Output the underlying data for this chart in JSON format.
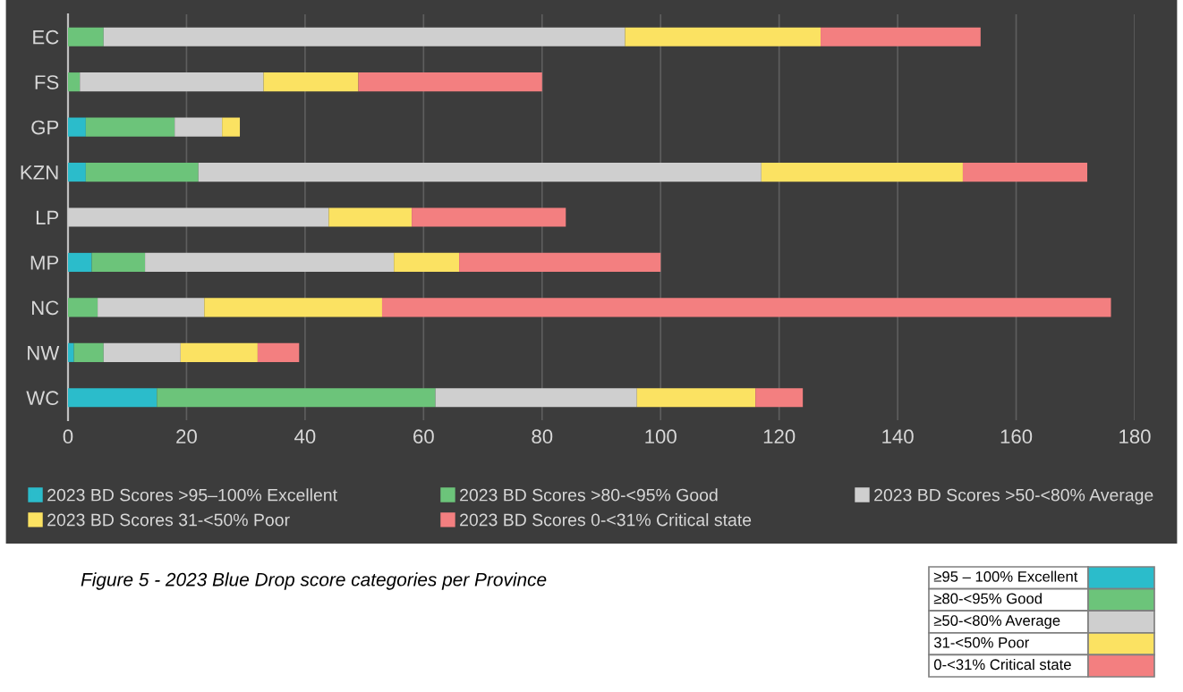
{
  "chart_data": {
    "type": "bar",
    "orientation": "horizontal",
    "stacked": true,
    "categories": [
      "EC",
      "FS",
      "GP",
      "KZN",
      "LP",
      "MP",
      "NC",
      "NW",
      "WC"
    ],
    "series": [
      {
        "name": "2023 BD Scores >95–100% Excellent",
        "color": "#2bbccb",
        "values": [
          0,
          0,
          3,
          3,
          0,
          4,
          0,
          1,
          15
        ]
      },
      {
        "name": "2023 BD Scores >80-<95% Good",
        "color": "#6cc47a",
        "values": [
          6,
          2,
          15,
          19,
          0,
          9,
          5,
          5,
          47
        ]
      },
      {
        "name": "2023 BD Scores >50-<80% Average",
        "color": "#cfcfcf",
        "values": [
          88,
          31,
          8,
          95,
          44,
          42,
          18,
          13,
          34
        ]
      },
      {
        "name": "2023 BD Scores 31-<50% Poor",
        "color": "#fbe262",
        "values": [
          33,
          16,
          3,
          34,
          14,
          11,
          30,
          13,
          20
        ]
      },
      {
        "name": "2023 BD Scores 0-<31% Critical state",
        "color": "#f37f80",
        "values": [
          27,
          31,
          0,
          21,
          26,
          34,
          123,
          7,
          8
        ]
      }
    ],
    "xlim": [
      0,
      180
    ],
    "xticks": [
      0,
      20,
      40,
      60,
      80,
      100,
      120,
      140,
      160,
      180
    ],
    "grid": "x",
    "legend": "bottom",
    "annotations": [
      "Figure 5 - 2023 Blue Drop score categories per Province",
      "≥95 – 100% Excellent",
      "≥80-<95% Good",
      "≥50-<80% Average",
      "31-<50% Poor",
      "0-<31% Critical state"
    ]
  }
}
